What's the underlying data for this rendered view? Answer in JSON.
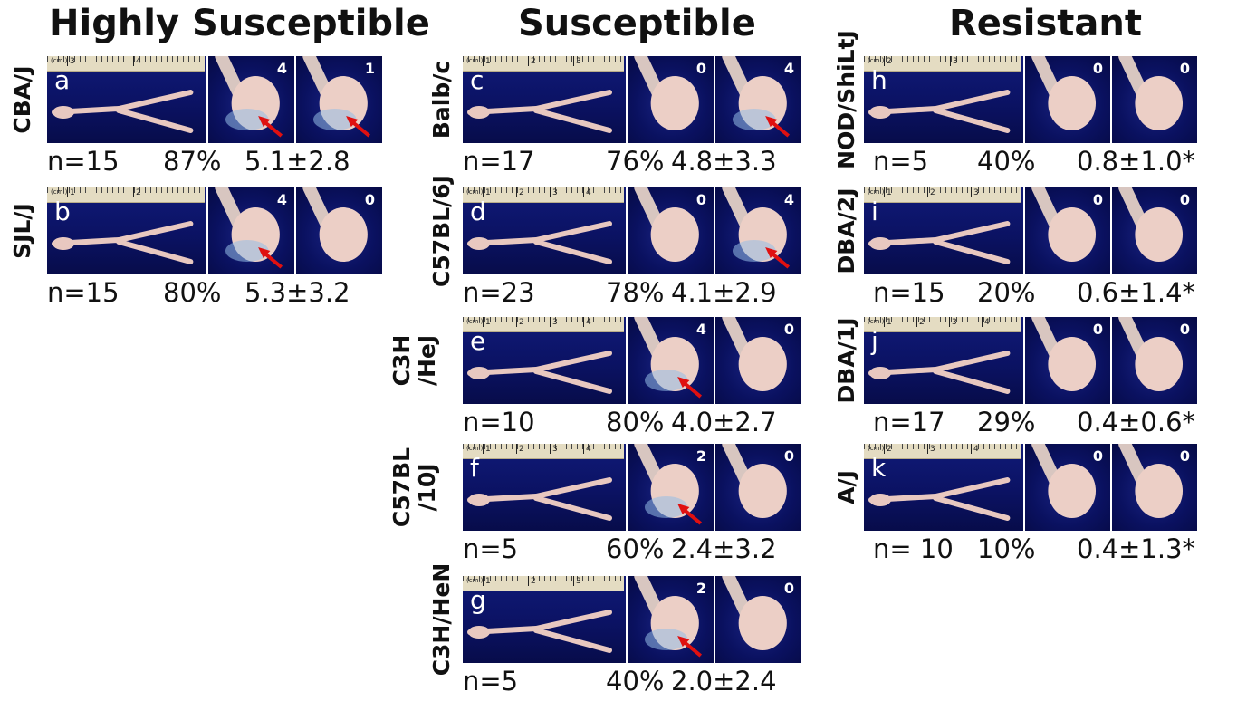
{
  "headers": {
    "highly_susceptible": "Highly Susceptible",
    "susceptible": "Susceptible",
    "resistant": "Resistant"
  },
  "panels": [
    {
      "letter": "a",
      "strain": "CBA/J",
      "n": "n=15",
      "pct": "87%",
      "mean": "5.1±2.8",
      "scores": [
        "4",
        "1"
      ],
      "arrows": [
        true,
        true
      ],
      "ruler_nums": [
        "3",
        "4"
      ]
    },
    {
      "letter": "b",
      "strain": "SJL/J",
      "n": "n=15",
      "pct": "80%",
      "mean": "5.3±3.2",
      "scores": [
        "4",
        "0"
      ],
      "arrows": [
        true,
        false
      ],
      "ruler_nums": [
        "1",
        "2"
      ]
    },
    {
      "letter": "c",
      "strain": "Balb/c",
      "n": "n=17",
      "pct": "76%",
      "mean": "4.8±3.3",
      "scores": [
        "0",
        "4"
      ],
      "arrows": [
        false,
        true
      ],
      "ruler_nums": [
        "1",
        "2",
        "3"
      ]
    },
    {
      "letter": "d",
      "strain": "C57BL/6J",
      "n": "n=23",
      "pct": "78%",
      "mean": "4.1±2.9",
      "scores": [
        "0",
        "4"
      ],
      "arrows": [
        false,
        true
      ],
      "ruler_nums": [
        "1",
        "2",
        "3",
        "4"
      ]
    },
    {
      "letter": "e",
      "strain": "C3H /HeJ",
      "n": "n=10",
      "pct": "80%",
      "mean": "4.0±2.7",
      "scores": [
        "4",
        "0"
      ],
      "arrows": [
        true,
        false
      ],
      "ruler_nums": [
        "1",
        "2",
        "3",
        "4"
      ]
    },
    {
      "letter": "f",
      "strain": "C57BL /10J",
      "n": "n=5",
      "pct": "60%",
      "mean": "2.4±3.2",
      "scores": [
        "2",
        "0"
      ],
      "arrows": [
        true,
        false
      ],
      "ruler_nums": [
        "1",
        "2",
        "3",
        "4"
      ]
    },
    {
      "letter": "g",
      "strain": "C3H/HeN",
      "n": "n=5",
      "pct": "40%",
      "mean": "2.0±2.4",
      "scores": [
        "2",
        "0"
      ],
      "arrows": [
        true,
        false
      ],
      "ruler_nums": [
        "1",
        "2",
        "3"
      ]
    },
    {
      "letter": "h",
      "strain": "NOD/ShiLtJ",
      "n": "n=5",
      "pct": "40%",
      "mean": "0.8±1.0*",
      "scores": [
        "0",
        "0"
      ],
      "arrows": [
        false,
        false
      ],
      "ruler_nums": [
        "2",
        "3"
      ]
    },
    {
      "letter": "i",
      "strain": "DBA/2J",
      "n": "n=15",
      "pct": "20%",
      "mean": "0.6±1.4*",
      "scores": [
        "0",
        "0"
      ],
      "arrows": [
        false,
        false
      ],
      "ruler_nums": [
        "1",
        "2",
        "3"
      ]
    },
    {
      "letter": "j",
      "strain": "DBA/1J",
      "n": "n=17",
      "pct": "29%",
      "mean": "0.4±0.6*",
      "scores": [
        "0",
        "0"
      ],
      "arrows": [
        false,
        false
      ],
      "ruler_nums": [
        "1",
        "2",
        "3",
        "4"
      ]
    },
    {
      "letter": "k",
      "strain": "A/J",
      "n": "n= 10",
      "pct": "10%",
      "mean": "0.4±1.3*",
      "scores": [
        "0",
        "0"
      ],
      "arrows": [
        false,
        false
      ],
      "ruler_nums": [
        "2",
        "3",
        "4"
      ]
    }
  ],
  "colors": {
    "background": "#0b1263",
    "ruler": "#e4dcc2",
    "arrow": "#e01010",
    "tissue": "#e8c8c0"
  }
}
